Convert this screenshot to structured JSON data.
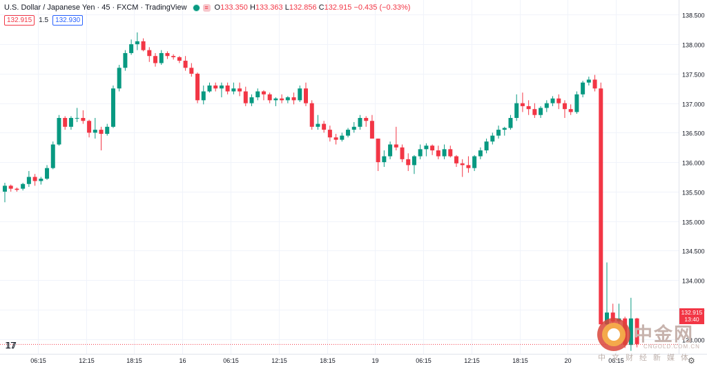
{
  "header": {
    "symbol": "U.S. Dollar / Japanese Yen · 45 · FXCM · TradingView",
    "open": "133.350",
    "high": "133.363",
    "low": "132.856",
    "close": "132.915",
    "change": "−0.435 (−0.33%)",
    "bid": "132.915",
    "spread": "1.5",
    "ask": "132.930"
  },
  "last_price": {
    "value": "132.915",
    "countdown": "13:40"
  },
  "watermark": {
    "chinese": "中金网",
    "url": "CNGOLD.COM.CN",
    "subtitle": "中文财经新媒体"
  },
  "colors": {
    "up": "#089981",
    "down": "#f23645",
    "grid": "#f0f3fa",
    "text": "#131722"
  },
  "chart_data": {
    "type": "candlestick",
    "ylim": [
      132.75,
      138.75
    ],
    "y_ticks": [
      "138.500",
      "138.000",
      "137.500",
      "137.000",
      "136.500",
      "136.000",
      "135.500",
      "135.000",
      "134.500",
      "134.000",
      "133.500",
      "133.000"
    ],
    "x_ticks": [
      "06:15",
      "12:15",
      "18:15",
      "16",
      "06:15",
      "12:15",
      "18:15",
      "19",
      "06:15",
      "12:15",
      "18:15",
      "20",
      "06:15"
    ],
    "x_tick_index": [
      5.5,
      13.5,
      21.5,
      29.5,
      37.5,
      45.5,
      53.5,
      61.5,
      69.5,
      77.5,
      85.5,
      93.5,
      101.5
    ],
    "candles": [
      [
        135.5,
        135.65,
        135.32,
        135.6
      ],
      [
        135.6,
        135.62,
        135.5,
        135.55
      ],
      [
        135.55,
        135.57,
        135.5,
        135.53
      ],
      [
        135.55,
        135.65,
        135.52,
        135.63
      ],
      [
        135.63,
        135.85,
        135.58,
        135.75
      ],
      [
        135.75,
        135.8,
        135.6,
        135.68
      ],
      [
        135.68,
        135.75,
        135.62,
        135.72
      ],
      [
        135.72,
        135.95,
        135.7,
        135.9
      ],
      [
        135.9,
        136.35,
        135.88,
        136.3
      ],
      [
        136.3,
        136.8,
        136.28,
        136.75
      ],
      [
        136.75,
        136.78,
        136.55,
        136.6
      ],
      [
        136.6,
        136.78,
        136.55,
        136.75
      ],
      [
        136.75,
        136.92,
        136.68,
        136.75
      ],
      [
        136.75,
        136.88,
        136.65,
        136.7
      ],
      [
        136.7,
        136.72,
        136.42,
        136.5
      ],
      [
        136.5,
        136.75,
        136.4,
        136.55
      ],
      [
        136.55,
        136.6,
        136.2,
        136.48
      ],
      [
        136.48,
        136.65,
        136.45,
        136.6
      ],
      [
        136.6,
        137.3,
        136.58,
        137.25
      ],
      [
        137.25,
        137.65,
        137.2,
        137.6
      ],
      [
        137.6,
        137.9,
        137.55,
        137.85
      ],
      [
        137.85,
        138.08,
        137.82,
        138.0
      ],
      [
        138.0,
        138.2,
        137.9,
        138.05
      ],
      [
        138.05,
        138.1,
        137.88,
        137.9
      ],
      [
        137.9,
        137.95,
        137.7,
        137.8
      ],
      [
        137.8,
        137.85,
        137.62,
        137.68
      ],
      [
        137.68,
        137.9,
        137.65,
        137.85
      ],
      [
        137.85,
        137.88,
        137.75,
        137.8
      ],
      [
        137.8,
        137.83,
        137.74,
        137.78
      ],
      [
        137.78,
        137.8,
        137.68,
        137.72
      ],
      [
        137.72,
        137.8,
        137.55,
        137.6
      ],
      [
        137.6,
        137.68,
        137.45,
        137.5
      ],
      [
        137.5,
        137.52,
        137.0,
        137.05
      ],
      [
        137.05,
        137.3,
        136.98,
        137.2
      ],
      [
        137.2,
        137.35,
        137.18,
        137.3
      ],
      [
        137.3,
        137.35,
        137.2,
        137.25
      ],
      [
        137.25,
        137.35,
        137.1,
        137.3
      ],
      [
        137.3,
        137.35,
        137.15,
        137.2
      ],
      [
        137.2,
        137.35,
        137.15,
        137.25
      ],
      [
        137.25,
        137.35,
        137.12,
        137.2
      ],
      [
        137.2,
        137.28,
        136.95,
        137.0
      ],
      [
        137.0,
        137.15,
        136.95,
        137.1
      ],
      [
        137.1,
        137.25,
        137.05,
        137.2
      ],
      [
        137.2,
        137.22,
        137.05,
        137.15
      ],
      [
        137.15,
        137.18,
        137.0,
        137.05
      ],
      [
        137.05,
        137.1,
        136.95,
        137.08
      ],
      [
        137.08,
        137.15,
        137.0,
        137.05
      ],
      [
        137.05,
        137.12,
        137.0,
        137.1
      ],
      [
        137.1,
        137.18,
        136.98,
        137.05
      ],
      [
        137.05,
        137.3,
        137.02,
        137.25
      ],
      [
        137.25,
        137.35,
        136.95,
        137.0
      ],
      [
        137.0,
        137.05,
        136.55,
        136.6
      ],
      [
        136.6,
        136.8,
        136.55,
        136.65
      ],
      [
        136.65,
        136.7,
        136.5,
        136.55
      ],
      [
        136.55,
        136.62,
        136.35,
        136.42
      ],
      [
        136.42,
        136.48,
        136.3,
        136.38
      ],
      [
        136.38,
        136.5,
        136.35,
        136.45
      ],
      [
        136.45,
        136.58,
        136.42,
        136.55
      ],
      [
        136.55,
        136.68,
        136.5,
        136.6
      ],
      [
        136.6,
        136.8,
        136.55,
        136.75
      ],
      [
        136.75,
        136.78,
        136.6,
        136.7
      ],
      [
        136.7,
        136.8,
        136.4,
        136.4
      ],
      [
        136.4,
        136.4,
        135.85,
        136.0
      ],
      [
        136.0,
        136.2,
        135.92,
        136.1
      ],
      [
        136.1,
        136.35,
        136.05,
        136.3
      ],
      [
        136.3,
        136.6,
        136.2,
        136.25
      ],
      [
        136.25,
        136.3,
        136.0,
        136.05
      ],
      [
        136.05,
        136.15,
        135.85,
        135.95
      ],
      [
        135.95,
        136.12,
        135.8,
        136.1
      ],
      [
        136.1,
        136.3,
        136.05,
        136.22
      ],
      [
        136.22,
        136.32,
        136.1,
        136.28
      ],
      [
        136.28,
        136.3,
        136.12,
        136.2
      ],
      [
        136.2,
        136.28,
        136.05,
        136.1
      ],
      [
        136.1,
        136.3,
        136.05,
        136.22
      ],
      [
        136.22,
        136.28,
        136.08,
        136.1
      ],
      [
        136.1,
        136.12,
        135.92,
        135.98
      ],
      [
        135.98,
        136.05,
        135.75,
        135.95
      ],
      [
        135.95,
        136.1,
        135.82,
        135.9
      ],
      [
        135.9,
        136.12,
        135.85,
        136.1
      ],
      [
        136.1,
        136.25,
        136.05,
        136.2
      ],
      [
        136.2,
        136.4,
        136.15,
        136.35
      ],
      [
        136.35,
        136.5,
        136.3,
        136.45
      ],
      [
        136.45,
        136.62,
        136.4,
        136.55
      ],
      [
        136.55,
        136.6,
        136.45,
        136.58
      ],
      [
        136.58,
        136.8,
        136.55,
        136.75
      ],
      [
        136.75,
        137.15,
        136.7,
        137.0
      ],
      [
        137.0,
        137.18,
        136.85,
        136.95
      ],
      [
        136.95,
        137.05,
        136.8,
        136.9
      ],
      [
        136.9,
        137.0,
        136.75,
        136.8
      ],
      [
        136.8,
        136.95,
        136.75,
        136.92
      ],
      [
        136.92,
        137.05,
        136.85,
        137.0
      ],
      [
        137.0,
        137.12,
        136.95,
        137.08
      ],
      [
        137.08,
        137.15,
        136.9,
        137.0
      ],
      [
        137.0,
        137.05,
        136.75,
        136.9
      ],
      [
        136.9,
        136.98,
        136.8,
        136.85
      ],
      [
        136.85,
        137.2,
        136.82,
        137.15
      ],
      [
        137.15,
        137.38,
        137.1,
        137.35
      ],
      [
        137.35,
        137.45,
        137.3,
        137.4
      ],
      [
        137.4,
        137.48,
        137.2,
        137.25
      ],
      [
        137.25,
        137.35,
        133.25,
        133.25
      ],
      [
        133.25,
        134.3,
        133.1,
        133.45
      ],
      [
        133.45,
        133.6,
        133.18,
        133.3
      ],
      [
        133.3,
        133.6,
        133.25,
        133.35
      ],
      [
        133.35,
        133.38,
        132.85,
        132.9
      ],
      [
        132.9,
        133.7,
        132.8,
        133.35
      ],
      [
        133.35,
        133.36,
        132.86,
        132.915
      ]
    ]
  }
}
